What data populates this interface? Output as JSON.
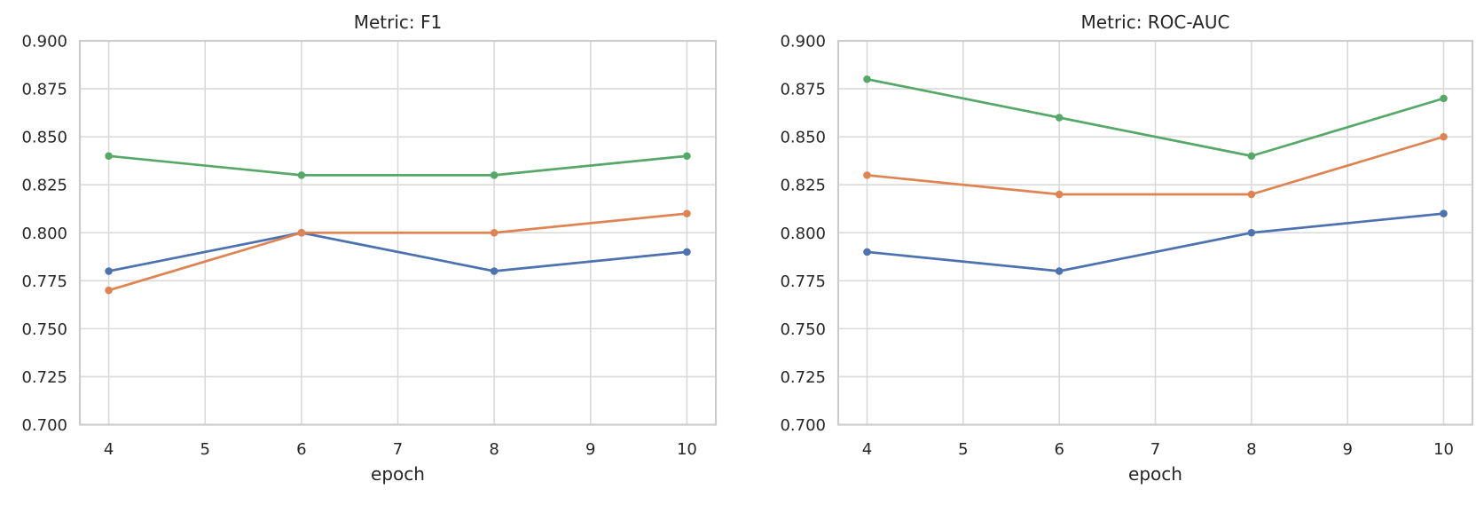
{
  "figure": {
    "background": "#FFFFFF"
  },
  "colors": {
    "grid": "#D9D9D9",
    "spine": "#CCCCCC",
    "text": "#262626",
    "series_blue": "#4C72B0",
    "series_orange": "#DD8452",
    "series_green": "#55A868"
  },
  "chart_data": [
    {
      "type": "line",
      "title": "Metric: F1",
      "xlabel": "epoch",
      "ylabel": "",
      "x": [
        4,
        6,
        8,
        10
      ],
      "series": [
        {
          "name": "blue-series",
          "color": "#4C72B0",
          "values": [
            0.78,
            0.8,
            0.78,
            0.79
          ]
        },
        {
          "name": "orange-series",
          "color": "#DD8452",
          "values": [
            0.77,
            0.8,
            0.8,
            0.81
          ]
        },
        {
          "name": "green-series",
          "color": "#55A868",
          "values": [
            0.84,
            0.83,
            0.83,
            0.84
          ]
        }
      ],
      "xlim": [
        3.7,
        10.3
      ],
      "ylim": [
        0.7,
        0.9
      ],
      "xticks": [
        4,
        5,
        6,
        7,
        8,
        9,
        10
      ],
      "xtick_labels": [
        "4",
        "5",
        "6",
        "7",
        "8",
        "9",
        "10"
      ],
      "yticks": [
        0.7,
        0.725,
        0.75,
        0.775,
        0.8,
        0.825,
        0.85,
        0.875,
        0.9
      ],
      "ytick_labels": [
        "0.700",
        "0.725",
        "0.750",
        "0.775",
        "0.800",
        "0.825",
        "0.850",
        "0.875",
        "0.900"
      ],
      "grid": true,
      "legend": "none",
      "marker": "circle"
    },
    {
      "type": "line",
      "title": "Metric: ROC-AUC",
      "xlabel": "epoch",
      "ylabel": "",
      "x": [
        4,
        6,
        8,
        10
      ],
      "series": [
        {
          "name": "blue-series",
          "color": "#4C72B0",
          "values": [
            0.79,
            0.78,
            0.8,
            0.81
          ]
        },
        {
          "name": "orange-series",
          "color": "#DD8452",
          "values": [
            0.83,
            0.82,
            0.82,
            0.85
          ]
        },
        {
          "name": "green-series",
          "color": "#55A868",
          "values": [
            0.88,
            0.86,
            0.84,
            0.87
          ]
        }
      ],
      "xlim": [
        3.7,
        10.3
      ],
      "ylim": [
        0.7,
        0.9
      ],
      "xticks": [
        4,
        5,
        6,
        7,
        8,
        9,
        10
      ],
      "xtick_labels": [
        "4",
        "5",
        "6",
        "7",
        "8",
        "9",
        "10"
      ],
      "yticks": [
        0.7,
        0.725,
        0.75,
        0.775,
        0.8,
        0.825,
        0.85,
        0.875,
        0.9
      ],
      "ytick_labels": [
        "0.700",
        "0.725",
        "0.750",
        "0.775",
        "0.800",
        "0.825",
        "0.850",
        "0.875",
        "0.900"
      ],
      "grid": true,
      "legend": "none",
      "marker": "circle"
    }
  ]
}
